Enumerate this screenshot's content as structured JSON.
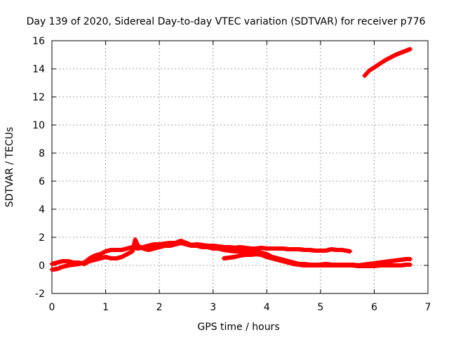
{
  "colors": {
    "series": "#ff0000",
    "grid": "#a0a0a0",
    "axis": "#000000"
  },
  "chart_data": {
    "type": "scatter",
    "title": "Day 139 of 2020, Sidereal Day-to-day VTEC variation (SDTVAR) for receiver p776",
    "xlabel": "GPS time / hours",
    "ylabel": "SDTVAR / TECUs",
    "xlim": [
      0,
      7
    ],
    "ylim": [
      -2,
      16
    ],
    "xticks": [
      "0",
      "1",
      "2",
      "3",
      "4",
      "5",
      "6",
      "7"
    ],
    "yticks": [
      "-2",
      "0",
      "2",
      "4",
      "6",
      "8",
      "10",
      "12",
      "14",
      "16"
    ],
    "grid": true,
    "marker": "plus",
    "series": [
      {
        "x": [
          5.82,
          5.9,
          6.0,
          6.1,
          6.2,
          6.3,
          6.4,
          6.5,
          6.6,
          6.67
        ],
        "y": [
          13.5,
          13.85,
          14.1,
          14.35,
          14.6,
          14.8,
          15.0,
          15.15,
          15.3,
          15.4
        ]
      },
      {
        "x": [
          0.0,
          0.1,
          0.2,
          0.3,
          0.4,
          0.5,
          0.6,
          0.7,
          0.8,
          0.9,
          1.0,
          1.1,
          1.2,
          1.3,
          1.4,
          1.5,
          1.6,
          1.7,
          1.8,
          1.9,
          2.0,
          2.1,
          2.2,
          2.3,
          2.4,
          2.5,
          2.6,
          2.7,
          2.8,
          2.9,
          3.0,
          3.1,
          3.2,
          3.3,
          3.4,
          3.5,
          3.6,
          3.7,
          3.8,
          3.9,
          4.0,
          4.1,
          4.2,
          4.3,
          4.4,
          4.5,
          4.6,
          4.7,
          4.8,
          4.9,
          5.0,
          5.1,
          5.2,
          5.3,
          5.4,
          5.55
        ],
        "y": [
          -0.3,
          -0.25,
          -0.1,
          0.0,
          0.05,
          0.1,
          0.2,
          0.5,
          0.7,
          0.8,
          1.0,
          1.1,
          1.1,
          1.1,
          1.2,
          1.3,
          1.2,
          1.3,
          1.4,
          1.5,
          1.5,
          1.55,
          1.6,
          1.6,
          1.75,
          1.6,
          1.45,
          1.5,
          1.45,
          1.4,
          1.4,
          1.35,
          1.3,
          1.3,
          1.25,
          1.3,
          1.25,
          1.2,
          1.2,
          1.25,
          1.2,
          1.2,
          1.2,
          1.2,
          1.15,
          1.15,
          1.15,
          1.1,
          1.1,
          1.05,
          1.05,
          1.05,
          1.15,
          1.1,
          1.1,
          1.0
        ]
      },
      {
        "x": [
          0.0,
          0.1,
          0.2,
          0.3,
          0.4,
          0.5,
          0.6,
          0.7,
          0.8,
          0.9,
          1.0,
          1.1,
          1.2,
          1.3,
          1.4,
          1.5,
          1.55,
          1.6,
          1.7,
          1.8,
          1.9,
          2.0,
          2.1,
          2.2,
          2.3,
          2.4,
          2.5,
          2.6,
          2.7,
          2.8,
          2.9,
          3.0,
          3.1,
          3.2,
          3.3,
          3.4,
          3.5,
          3.6,
          3.7,
          3.8,
          3.9,
          4.0,
          4.1,
          4.2,
          4.3,
          4.4,
          4.5,
          4.6,
          4.7,
          4.8,
          4.9,
          5.0,
          5.1,
          5.2,
          5.3,
          5.4,
          5.5,
          5.6,
          5.7,
          5.8,
          5.9,
          6.0,
          6.1,
          6.2,
          6.3,
          6.4,
          6.5,
          6.6,
          6.67
        ],
        "y": [
          0.1,
          0.2,
          0.3,
          0.3,
          0.2,
          0.2,
          0.1,
          0.3,
          0.4,
          0.5,
          0.6,
          0.5,
          0.5,
          0.6,
          0.8,
          1.0,
          1.85,
          1.4,
          1.2,
          1.1,
          1.2,
          1.3,
          1.4,
          1.4,
          1.5,
          1.6,
          1.5,
          1.4,
          1.4,
          1.3,
          1.3,
          1.2,
          1.2,
          1.1,
          1.05,
          1.0,
          1.0,
          1.05,
          1.0,
          1.0,
          0.9,
          0.8,
          0.6,
          0.5,
          0.4,
          0.3,
          0.2,
          0.1,
          0.1,
          0.05,
          0.05,
          0.05,
          0.1,
          0.05,
          0.05,
          0.05,
          0.05,
          0.05,
          0.0,
          0.05,
          0.1,
          0.15,
          0.2,
          0.25,
          0.3,
          0.35,
          0.4,
          0.45,
          0.45
        ]
      },
      {
        "x": [
          3.2,
          3.3,
          3.4,
          3.5,
          3.6,
          3.7,
          3.8,
          3.9,
          4.0,
          4.1,
          4.2,
          4.3,
          4.4,
          4.5,
          4.6,
          4.7,
          4.8,
          4.9,
          5.0,
          5.1,
          5.2,
          5.3,
          5.4,
          5.5,
          5.6,
          5.7,
          5.8,
          5.9,
          6.0,
          6.1,
          6.2,
          6.3,
          6.4,
          6.5,
          6.6,
          6.67
        ],
        "y": [
          0.5,
          0.55,
          0.6,
          0.7,
          0.75,
          0.75,
          0.8,
          0.75,
          0.6,
          0.5,
          0.4,
          0.3,
          0.2,
          0.1,
          0.05,
          0.0,
          0.0,
          0.0,
          0.0,
          0.0,
          0.0,
          0.0,
          0.0,
          0.0,
          0.0,
          -0.05,
          -0.05,
          -0.05,
          -0.05,
          0.0,
          0.0,
          0.0,
          0.0,
          0.0,
          0.05,
          0.05
        ]
      }
    ]
  }
}
